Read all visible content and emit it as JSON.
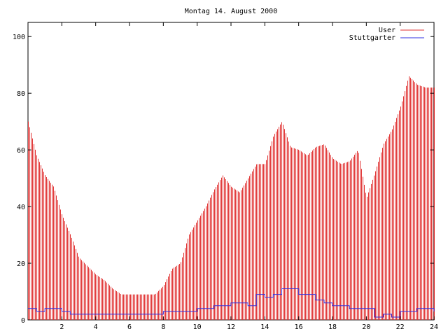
{
  "chart_data": {
    "type": "bar",
    "title": "Montag 14. August 2000",
    "xlabel": "",
    "ylabel": "",
    "xlim": [
      0,
      24
    ],
    "ylim": [
      0,
      105
    ],
    "x_ticks": [
      "2",
      "4",
      "6",
      "8",
      "10",
      "12",
      "14",
      "16",
      "18",
      "20",
      "22",
      "24"
    ],
    "y_ticks": [
      "0",
      "20",
      "40",
      "60",
      "80",
      "100"
    ],
    "legend_position": "top-right",
    "grid": false,
    "series": [
      {
        "name": "User",
        "render": "impulses",
        "color": "#e03030",
        "x": [
          0,
          0.5,
          1,
          1.5,
          2,
          2.5,
          3,
          3.5,
          4,
          4.5,
          5,
          5.5,
          6,
          6.5,
          7,
          7.5,
          8,
          8.5,
          9,
          9.5,
          10,
          10.5,
          11,
          11.5,
          12,
          12.5,
          13,
          13.5,
          14,
          14.5,
          15,
          15.5,
          16,
          16.5,
          17,
          17.5,
          18,
          18.5,
          19,
          19.5,
          20,
          20.5,
          21,
          21.5,
          22,
          22.5,
          23,
          23.5,
          24
        ],
        "values": [
          70,
          58,
          51,
          47,
          37,
          30,
          22,
          19,
          16,
          14,
          11,
          9,
          9,
          9,
          9,
          9,
          12,
          18,
          20,
          30,
          35,
          40,
          46,
          51,
          47,
          45,
          50,
          55,
          55,
          65,
          70,
          61,
          60,
          58,
          61,
          62,
          57,
          55,
          56,
          60,
          43,
          52,
          62,
          67,
          75,
          86,
          83,
          82,
          82
        ]
      },
      {
        "name": "Stuttgarter",
        "render": "steps",
        "color": "#3030e0",
        "x": [
          0,
          0.5,
          1,
          2,
          2.5,
          3,
          4,
          5,
          6,
          7,
          8,
          9,
          10,
          11,
          12,
          13,
          13.5,
          14,
          14.5,
          15,
          16,
          17,
          17.5,
          18,
          19,
          20,
          20.5,
          21,
          21.5,
          22,
          23,
          24
        ],
        "values": [
          4,
          3,
          4,
          3,
          2,
          2,
          2,
          2,
          2,
          2,
          3,
          3,
          4,
          5,
          6,
          5,
          9,
          8,
          9,
          11,
          9,
          7,
          6,
          5,
          4,
          4,
          1,
          2,
          1,
          3,
          4,
          3
        ]
      }
    ]
  }
}
